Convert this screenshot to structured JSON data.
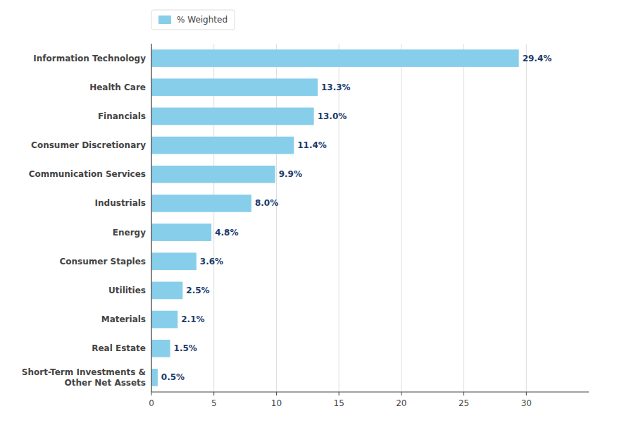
{
  "chart_data": {
    "type": "bar",
    "orientation": "horizontal",
    "categories": [
      "Short-Term Investments &\nOther Net Assets",
      "Real Estate",
      "Materials",
      "Utilities",
      "Consumer Staples",
      "Energy",
      "Industrials",
      "Communication Services",
      "Consumer Discretionary",
      "Financials",
      "Health Care",
      "Information Technology"
    ],
    "series": [
      {
        "name": "% Weighted",
        "color": "#87CEEB",
        "values": [
          0.5,
          1.5,
          2.1,
          2.5,
          3.6,
          4.8,
          8.0,
          9.9,
          11.4,
          13.0,
          13.3,
          29.4
        ],
        "value_labels": [
          "0.5%",
          "1.5%",
          "2.1%",
          "2.5%",
          "3.6%",
          "4.8%",
          "8.0%",
          "9.9%",
          "11.4%",
          "13.0%",
          "13.3%",
          "29.4%"
        ]
      }
    ],
    "xlim": [
      0,
      35
    ],
    "xticks": [
      0,
      5,
      10,
      15,
      20,
      25,
      30
    ],
    "grid": true,
    "legend": "upper left",
    "data_labels": true
  }
}
